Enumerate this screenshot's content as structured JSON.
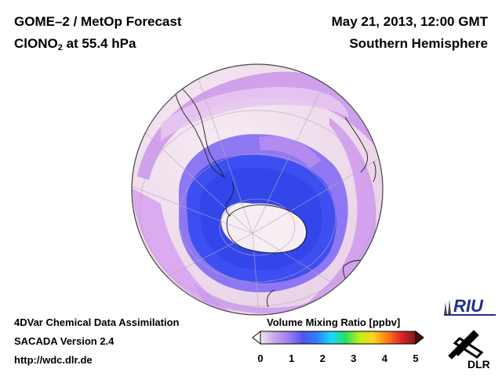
{
  "header": {
    "title": "GOME–2 / MetOp Forecast",
    "species": "ClONO",
    "species_sub": "2",
    "level": " at 55.4 hPa",
    "datetime": "May 21, 2013, 12:00 GMT",
    "hemisphere": "Southern Hemisphere"
  },
  "footer": {
    "line1": "4DVar Chemical Data Assimilation",
    "line2": "SACADA Version 2.4",
    "line3": "http://wdc.dlr.de"
  },
  "colorbar": {
    "title": "Volume Mixing Ratio [ppbv]",
    "ticks": [
      "0",
      "1",
      "2",
      "3",
      "4",
      "5"
    ],
    "stops": [
      "#f0e6ee",
      "#c7a7ea",
      "#9f7cf0",
      "#4f55ee",
      "#2f7fff",
      "#19d8ff",
      "#25e066",
      "#b8f01a",
      "#ffd21e",
      "#ff7a18",
      "#e0242a",
      "#7a1a14"
    ]
  },
  "logos": {
    "riu": "RIU",
    "dlr": "DLR"
  },
  "map": {
    "center_colors": {
      "ice": "#f6eef2",
      "low": "#ead1f2",
      "mid": "#d39ee9",
      "high": "#b889f0",
      "blue": "#3a50f2"
    }
  }
}
